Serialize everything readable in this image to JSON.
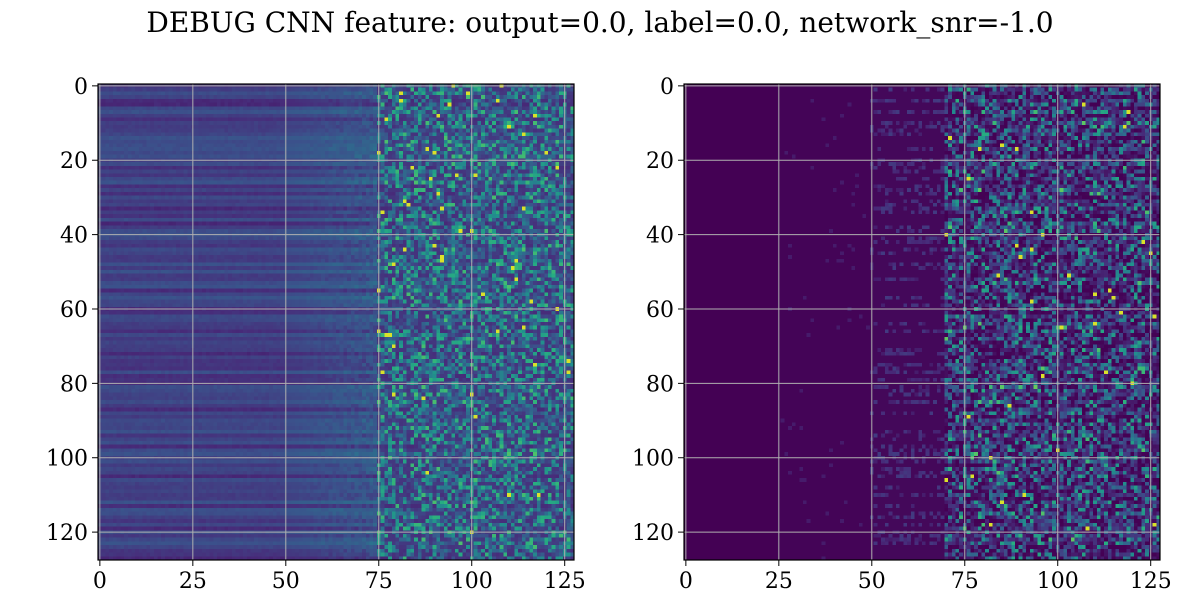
{
  "figure": {
    "title": "DEBUG CNN feature: output=0.0, label=0.0, network_snr=-1.0"
  },
  "chart_data": [
    {
      "type": "heatmap",
      "title": "",
      "xlabel": "",
      "ylabel": "",
      "rows": 128,
      "cols": 128,
      "colormap": "viridis",
      "xlim": [
        -0.5,
        127.5
      ],
      "ylim": [
        127.5,
        -0.5
      ],
      "y_inverted": true,
      "xticks": [
        0,
        25,
        50,
        75,
        100,
        125
      ],
      "yticks": [
        0,
        20,
        40,
        60,
        80,
        100,
        120
      ],
      "grid": true,
      "grid_color": "#b0b0b0"
    },
    {
      "type": "heatmap",
      "title": "",
      "xlabel": "",
      "ylabel": "",
      "rows": 128,
      "cols": 128,
      "colormap": "viridis",
      "xlim": [
        -0.5,
        127.5
      ],
      "ylim": [
        127.5,
        -0.5
      ],
      "y_inverted": true,
      "xticks": [
        0,
        25,
        50,
        75,
        100,
        125
      ],
      "yticks": [
        0,
        20,
        40,
        60,
        80,
        100,
        120
      ],
      "grid": true,
      "grid_color": "#b0b0b0"
    }
  ],
  "colors": {
    "viridis_low": "#440154",
    "viridis_mid": "#21918c",
    "viridis_high": "#fde725"
  }
}
